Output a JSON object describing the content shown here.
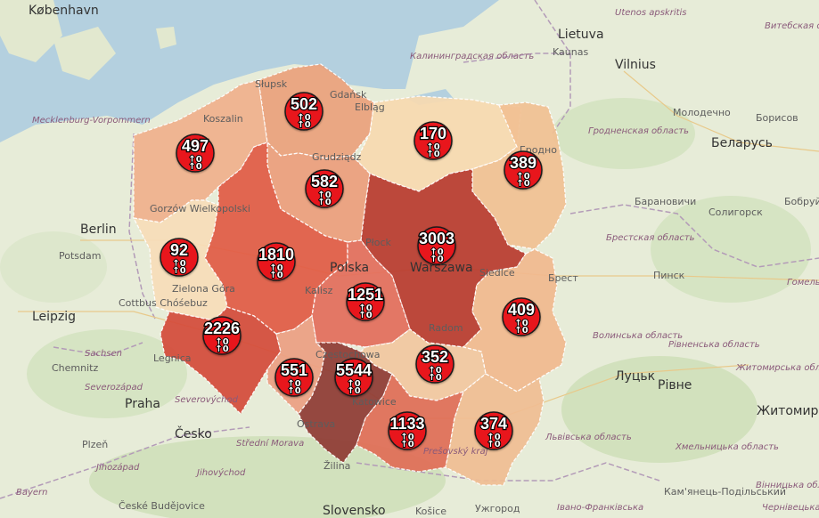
{
  "map": {
    "place_labels": [
      {
        "id": "kobenhavn",
        "text": "København",
        "style": "lbl-big"
      },
      {
        "id": "utenos",
        "text": "Utenos apskritis",
        "style": "lbl-it"
      },
      {
        "id": "vitebsk",
        "text": "Витебская область",
        "style": "lbl-it"
      },
      {
        "id": "lietuva",
        "text": "Lietuva",
        "style": "lbl-big"
      },
      {
        "id": "kaunas",
        "text": "Kaunas",
        "style": "lbl"
      },
      {
        "id": "vilnius",
        "text": "Vilnius",
        "style": "lbl-big"
      },
      {
        "id": "kaliningrad",
        "text": "Калининградская область",
        "style": "lbl-it"
      },
      {
        "id": "molodechno",
        "text": "Молодечно",
        "style": "lbl"
      },
      {
        "id": "borisov",
        "text": "Борисов",
        "style": "lbl"
      },
      {
        "id": "belarus",
        "text": "Беларусь",
        "style": "lbl-big"
      },
      {
        "id": "grodno-obl",
        "text": "Гродненская область",
        "style": "lbl-it"
      },
      {
        "id": "mecklenburg",
        "text": "Mecklenburg-Vorpommern",
        "style": "lbl-it"
      },
      {
        "id": "slupsk",
        "text": "Słupsk",
        "style": "lbl"
      },
      {
        "id": "gdansk",
        "text": "Gdańsk",
        "style": "lbl"
      },
      {
        "id": "elblag",
        "text": "Elbląg",
        "style": "lbl"
      },
      {
        "id": "koszalin",
        "text": "Koszalin",
        "style": "lbl"
      },
      {
        "id": "grodno",
        "text": "Гродно",
        "style": "lbl"
      },
      {
        "id": "baranovichi",
        "text": "Барановичи",
        "style": "lbl"
      },
      {
        "id": "soligorsk",
        "text": "Солигорск",
        "style": "lbl"
      },
      {
        "id": "bobruysk",
        "text": "Бобруйск",
        "style": "lbl"
      },
      {
        "id": "berlin",
        "text": "Berlin",
        "style": "lbl-big"
      },
      {
        "id": "potsdam",
        "text": "Potsdam",
        "style": "lbl"
      },
      {
        "id": "brest-obl",
        "text": "Брестская область",
        "style": "lbl-it"
      },
      {
        "id": "plock",
        "text": "Płock",
        "style": "lbl"
      },
      {
        "id": "warszawa",
        "text": "Warszawa",
        "style": "lbl-big"
      },
      {
        "id": "siedlce",
        "text": "Siedlce",
        "style": "lbl"
      },
      {
        "id": "brest",
        "text": "Брест",
        "style": "lbl"
      },
      {
        "id": "pinsk",
        "text": "Пинск",
        "style": "lbl"
      },
      {
        "id": "gomel",
        "text": "Гомель",
        "style": "lbl-it"
      },
      {
        "id": "polska",
        "text": "Polska",
        "style": "lbl-big"
      },
      {
        "id": "kalisz",
        "text": "Kalisz",
        "style": "lbl"
      },
      {
        "id": "zielona",
        "text": "Zielona Góra",
        "style": "lbl"
      },
      {
        "id": "cottbus",
        "text": "Cottbus Chóśebuz",
        "style": "lbl"
      },
      {
        "id": "leipzig",
        "text": "Leipzig",
        "style": "lbl-big"
      },
      {
        "id": "sachsen",
        "text": "Sachsen",
        "style": "lbl-it"
      },
      {
        "id": "radom",
        "text": "Radom",
        "style": "lbl"
      },
      {
        "id": "volyn",
        "text": "Волинська область",
        "style": "lbl-it"
      },
      {
        "id": "rivne-obl",
        "text": "Рівненська область",
        "style": "lbl-it"
      },
      {
        "id": "zhytomyr-obl",
        "text": "Житомирська область",
        "style": "lbl-it"
      },
      {
        "id": "chemnitz",
        "text": "Chemnitz",
        "style": "lbl"
      },
      {
        "id": "legnica",
        "text": "Legnica",
        "style": "lbl"
      },
      {
        "id": "lutsk",
        "text": "Луцьк",
        "style": "lbl-big"
      },
      {
        "id": "rivne",
        "text": "Рівне",
        "style": "lbl-big"
      },
      {
        "id": "zhytomyr",
        "text": "Житомир",
        "style": "lbl-big"
      },
      {
        "id": "severozapad",
        "text": "Severozápad",
        "style": "lbl-it"
      },
      {
        "id": "severovychod",
        "text": "Severovýchod",
        "style": "lbl-it"
      },
      {
        "id": "praha",
        "text": "Praha",
        "style": "lbl-big"
      },
      {
        "id": "katowice",
        "text": "Katowice",
        "style": "lbl"
      },
      {
        "id": "cesko",
        "text": "Česko",
        "style": "lbl-big"
      },
      {
        "id": "ostrava",
        "text": "Ostrava",
        "style": "lbl"
      },
      {
        "id": "lviv-obl",
        "text": "Львівська область",
        "style": "lbl-it"
      },
      {
        "id": "khmel-obl",
        "text": "Хмельницька область",
        "style": "lbl-it"
      },
      {
        "id": "plzen",
        "text": "Plzeň",
        "style": "lbl"
      },
      {
        "id": "stredni",
        "text": "Střední Morava",
        "style": "lbl-it"
      },
      {
        "id": "presovsky",
        "text": "Prešovský kraj",
        "style": "lbl-it"
      },
      {
        "id": "jihozapad",
        "text": "Jihozápad",
        "style": "lbl-it"
      },
      {
        "id": "jihovychod",
        "text": "Jihovýchod",
        "style": "lbl-it"
      },
      {
        "id": "zilina",
        "text": "Žilina",
        "style": "lbl"
      },
      {
        "id": "vinnytsia",
        "text": "Вінницька область",
        "style": "lbl-it"
      },
      {
        "id": "kamianets",
        "text": "Кам'янець-Подільський",
        "style": "lbl"
      },
      {
        "id": "bayern",
        "text": "Bayern",
        "style": "lbl-it"
      },
      {
        "id": "budejovice",
        "text": "České Budějovice",
        "style": "lbl"
      },
      {
        "id": "slovensko",
        "text": "Slovensko",
        "style": "lbl-big"
      },
      {
        "id": "kosice",
        "text": "Košice",
        "style": "lbl"
      },
      {
        "id": "uzhhorod",
        "text": "Ужгород",
        "style": "lbl"
      },
      {
        "id": "ivano",
        "text": "Івано-Франківська",
        "style": "lbl-it"
      },
      {
        "id": "chernivtsi",
        "text": "Чернівецька",
        "style": "lbl-it"
      },
      {
        "id": "gorzow",
        "text": "Gorzów Wielkopolski",
        "style": "lbl"
      },
      {
        "id": "grudziadz",
        "text": "Grudziądz",
        "style": "lbl"
      },
      {
        "id": "czestochowa",
        "text": "Częstochowa",
        "style": "lbl"
      }
    ],
    "regions": [
      {
        "id": "zachodniopomorskie",
        "count": "497",
        "color": "#f0b08c"
      },
      {
        "id": "pomorskie",
        "count": "502",
        "color": "#eaa17c"
      },
      {
        "id": "warminsko-mazurskie",
        "count": "170",
        "color": "#f7d9b0"
      },
      {
        "id": "podlaskie",
        "count": "389",
        "color": "#f1c092"
      },
      {
        "id": "kujawsko-pomorskie",
        "count": "582",
        "color": "#ec9d7c"
      },
      {
        "id": "lubuskie",
        "count": "92",
        "color": "#f7dcb8"
      },
      {
        "id": "wielkopolskie",
        "count": "1810",
        "color": "#e15a44"
      },
      {
        "id": "mazowieckie",
        "count": "3003",
        "color": "#b83a2e"
      },
      {
        "id": "lodzkie",
        "count": "1251",
        "color": "#e36c5b"
      },
      {
        "id": "lubelskie",
        "count": "409",
        "color": "#f1b88e"
      },
      {
        "id": "dolnoslaskie",
        "count": "2226",
        "color": "#d44a39"
      },
      {
        "id": "opolskie",
        "count": "551",
        "color": "#ec9e82"
      },
      {
        "id": "slaskie",
        "count": "5544",
        "color": "#8e3a33"
      },
      {
        "id": "swietokrzyskie",
        "count": "352",
        "color": "#f2c7a0"
      },
      {
        "id": "malopolskie",
        "count": "1133",
        "color": "#df6c56"
      },
      {
        "id": "podkarpackie",
        "count": "374",
        "color": "#f0bd92"
      }
    ],
    "marker_symbol": "↑0",
    "marker_count_symbol": "↑0"
  }
}
